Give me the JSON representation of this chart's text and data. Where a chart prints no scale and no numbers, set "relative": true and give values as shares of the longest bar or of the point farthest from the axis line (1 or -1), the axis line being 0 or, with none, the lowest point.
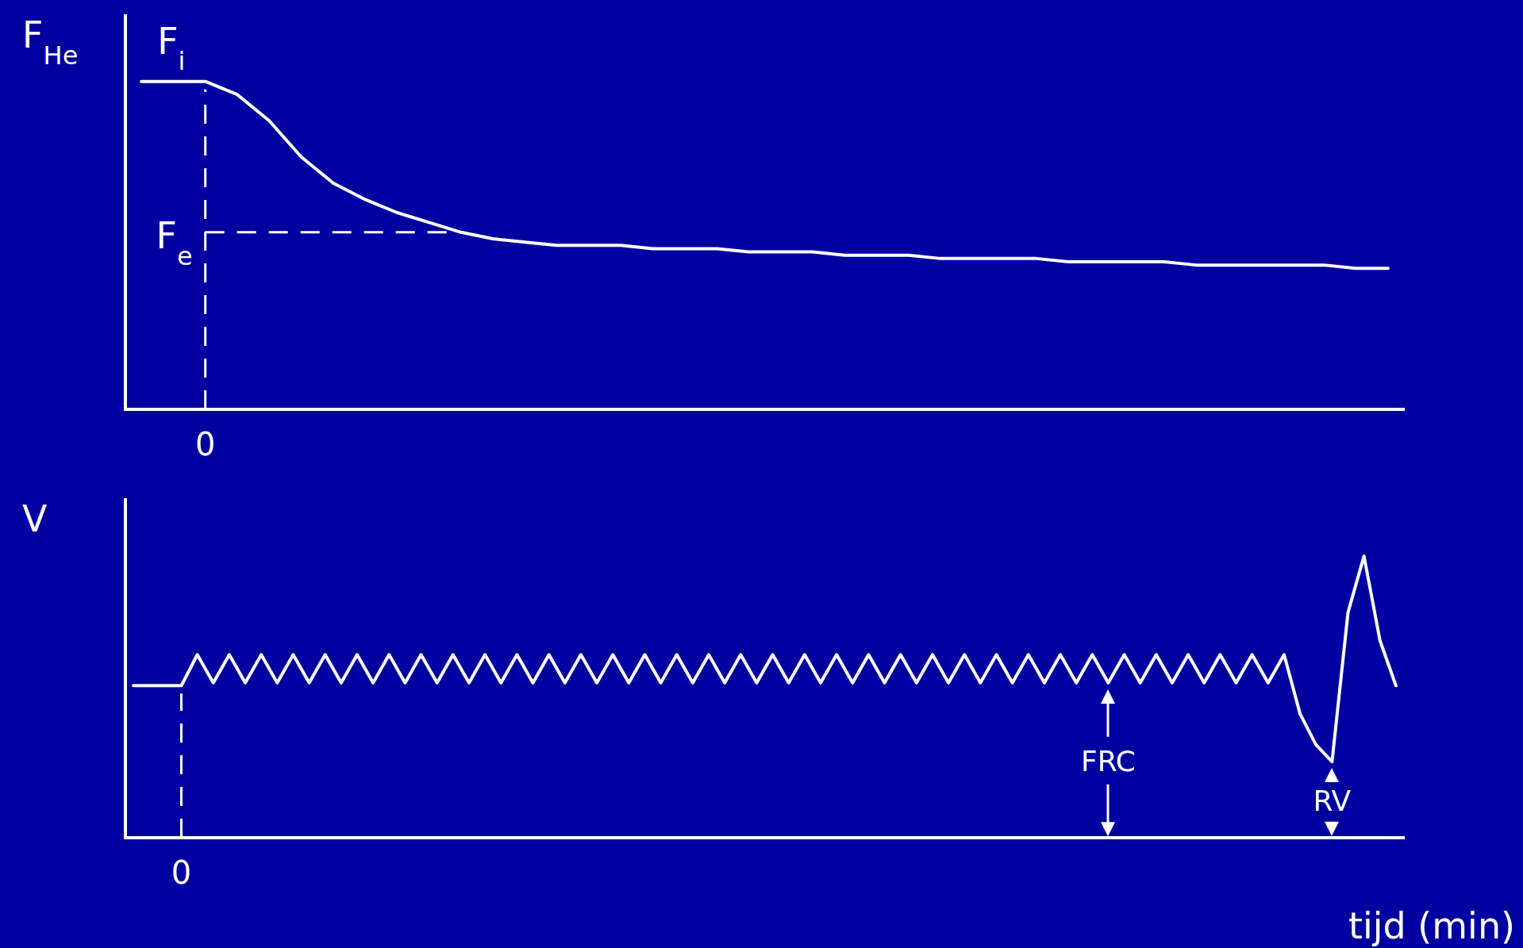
{
  "chart_data": [
    {
      "type": "line",
      "ylabel": "F$_{He}$",
      "relative": true,
      "color": "#ffffff",
      "categories": [
        null,
        null,
        null,
        null,
        null,
        null,
        null,
        null,
        null,
        null,
        null,
        null,
        null,
        null,
        null,
        null,
        null,
        null,
        null,
        null,
        null,
        null,
        null,
        null,
        null,
        null,
        null,
        null,
        null,
        null,
        null,
        null,
        null,
        null,
        null,
        null,
        null,
        null,
        null,
        null
      ],
      "values": [
        1,
        1,
        1,
        0.96,
        0.88,
        0.77,
        0.69,
        0.64,
        0.6,
        0.57,
        0.54,
        0.52,
        0.51,
        0.5,
        0.5,
        0.5,
        0.49,
        0.49,
        0.49,
        0.48,
        0.48,
        0.48,
        0.47,
        0.47,
        0.47,
        0.46,
        0.46,
        0.46,
        0.46,
        0.45,
        0.45,
        0.45,
        0.45,
        0.44,
        0.44,
        0.44,
        0.44,
        0.44,
        0.43,
        0.43
      ],
      "ref_lines": [
        {
          "axis": "y",
          "value": 0.54,
          "label": "F$_{e}$",
          "line_style": "dashed"
        }
      ],
      "annotations": [
        "F$_{i}$",
        "0"
      ]
    },
    {
      "type": "line",
      "ylabel": "V",
      "xlabel": "tijd (min)",
      "relative": true,
      "color": "#ffffff",
      "categories": [
        null,
        null,
        null,
        null,
        null,
        null,
        null,
        null,
        null,
        null,
        null,
        null,
        null,
        null,
        null,
        null,
        null,
        null,
        null,
        null,
        null,
        null,
        null,
        null,
        null,
        null,
        null,
        null,
        null,
        null,
        null,
        null,
        null,
        null,
        null,
        null,
        null,
        null,
        null,
        null,
        null,
        null,
        null,
        null,
        null,
        null,
        null,
        null,
        null,
        null,
        null,
        null,
        null,
        null,
        null,
        null,
        null,
        null,
        null,
        null,
        null,
        null,
        null,
        null,
        null,
        null,
        null,
        null,
        null,
        null,
        null,
        null,
        null,
        null,
        null,
        null,
        null,
        null,
        null,
        null
      ],
      "values": [
        0.54,
        0.54,
        0.54,
        0.54,
        0.65,
        0.55,
        0.65,
        0.55,
        0.65,
        0.55,
        0.65,
        0.55,
        0.65,
        0.55,
        0.65,
        0.55,
        0.65,
        0.55,
        0.65,
        0.55,
        0.65,
        0.55,
        0.65,
        0.55,
        0.65,
        0.55,
        0.65,
        0.55,
        0.65,
        0.55,
        0.65,
        0.55,
        0.65,
        0.55,
        0.65,
        0.55,
        0.65,
        0.55,
        0.65,
        0.55,
        0.65,
        0.55,
        0.65,
        0.55,
        0.65,
        0.55,
        0.65,
        0.55,
        0.65,
        0.55,
        0.65,
        0.55,
        0.65,
        0.55,
        0.65,
        0.55,
        0.65,
        0.55,
        0.65,
        0.55,
        0.65,
        0.55,
        0.65,
        0.55,
        0.65,
        0.55,
        0.65,
        0.55,
        0.65,
        0.55,
        0.65,
        0.55,
        0.65,
        0.44,
        0.33,
        0.27,
        0.8,
        1,
        0.7,
        0.54
      ],
      "annotations": [
        "FRC",
        "RV",
        "0"
      ]
    }
  ]
}
